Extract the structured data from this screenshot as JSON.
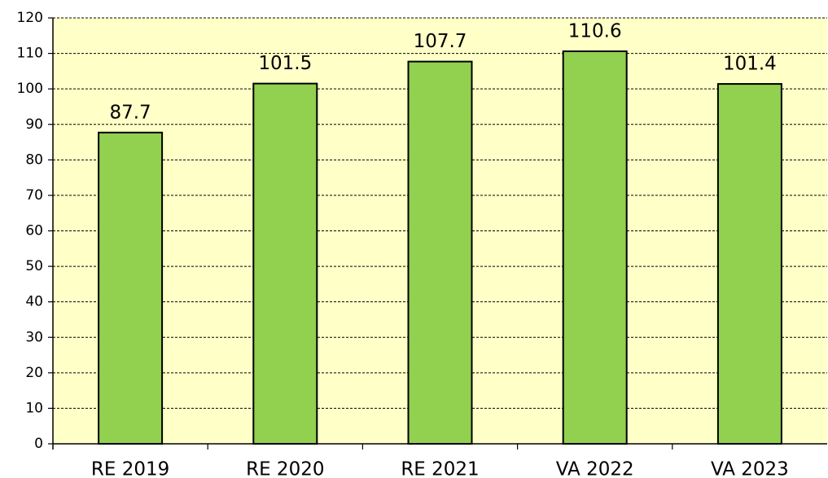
{
  "chart_data": {
    "type": "bar",
    "categories": [
      "RE 2019",
      "RE 2020",
      "RE 2021",
      "VA 2022",
      "VA 2023"
    ],
    "values": [
      87.7,
      101.5,
      107.7,
      110.6,
      101.4
    ],
    "color": "#92d050",
    "background": "#ffffc8",
    "ylim": [
      0,
      120
    ],
    "yticks": [
      0,
      10,
      20,
      30,
      40,
      50,
      60,
      70,
      80,
      90,
      100,
      110,
      120
    ],
    "grid": true
  }
}
